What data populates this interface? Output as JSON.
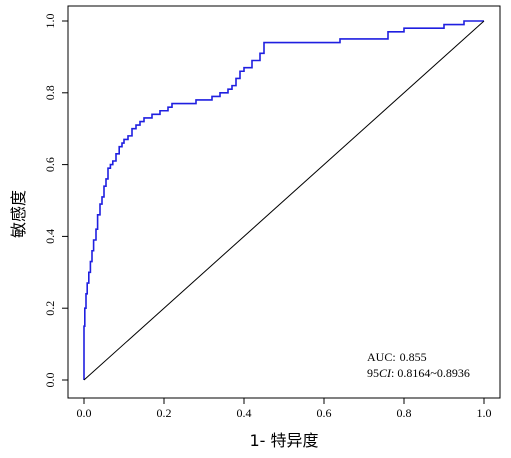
{
  "chart_data": {
    "type": "line",
    "xlabel": "1- 特异度",
    "ylabel": "敏感度",
    "xlim": [
      0,
      1
    ],
    "ylim": [
      0,
      1
    ],
    "x_ticks": [
      "0.0",
      "0.2",
      "0.4",
      "0.6",
      "0.8",
      "1.0"
    ],
    "y_ticks": [
      "0.0",
      "0.2",
      "0.4",
      "0.6",
      "0.8",
      "1.0"
    ],
    "grid": false,
    "colors": {
      "roc": "#1f1fe0",
      "reference": "#000000"
    },
    "annotation": {
      "auc_label": "AUC:",
      "auc_value": "0.855",
      "ci_prefix": "95",
      "ci_italic": "CI",
      "ci_value": ": 0.8164~0.8936"
    },
    "series": [
      {
        "x": [
          0,
          0,
          0.002,
          0.005,
          0.008,
          0.012,
          0.016,
          0.02,
          0.024,
          0.03,
          0.034,
          0.04,
          0.045,
          0.05,
          0.055,
          0.06,
          0.066,
          0.072,
          0.08,
          0.088,
          0.095,
          0.1,
          0.11,
          0.12,
          0.13,
          0.14,
          0.15,
          0.17,
          0.19,
          0.21,
          0.22,
          0.24,
          0.26,
          0.28,
          0.3,
          0.32,
          0.34,
          0.36,
          0.37,
          0.38,
          0.39,
          0.4,
          0.42,
          0.44,
          0.45,
          0.5,
          0.55,
          0.6,
          0.64,
          0.7,
          0.74,
          0.76,
          0.8,
          0.85,
          0.9,
          0.95,
          1.0
        ],
        "y": [
          0,
          0.15,
          0.2,
          0.24,
          0.27,
          0.3,
          0.33,
          0.36,
          0.39,
          0.42,
          0.46,
          0.49,
          0.51,
          0.54,
          0.56,
          0.59,
          0.6,
          0.61,
          0.63,
          0.65,
          0.66,
          0.67,
          0.68,
          0.7,
          0.71,
          0.72,
          0.73,
          0.74,
          0.75,
          0.76,
          0.77,
          0.77,
          0.77,
          0.78,
          0.78,
          0.79,
          0.8,
          0.81,
          0.82,
          0.84,
          0.86,
          0.87,
          0.89,
          0.91,
          0.94,
          0.94,
          0.94,
          0.94,
          0.95,
          0.95,
          0.95,
          0.97,
          0.98,
          0.98,
          0.99,
          1.0,
          1.0
        ]
      },
      {
        "x": [
          0,
          1
        ],
        "y": [
          0,
          1
        ]
      }
    ]
  }
}
